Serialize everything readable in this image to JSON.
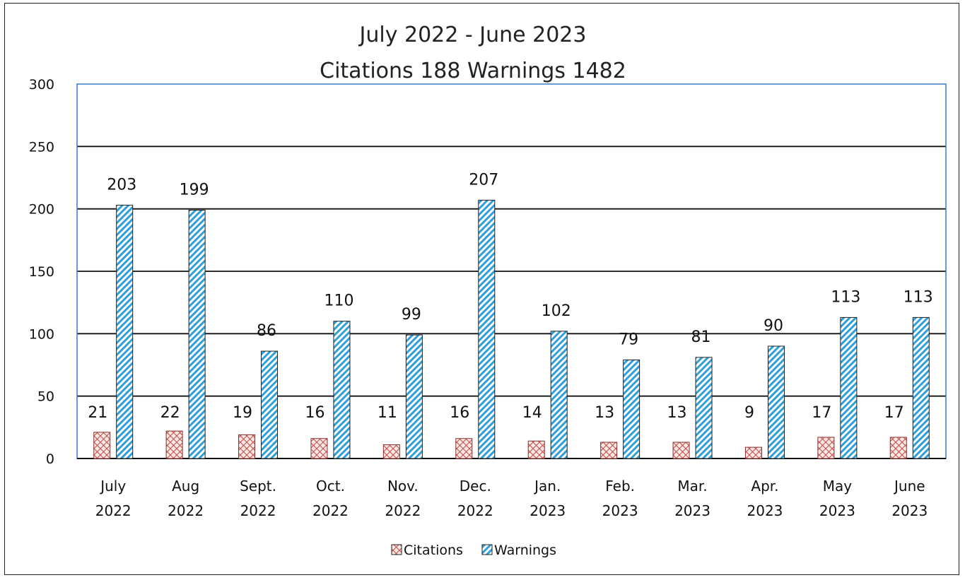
{
  "chart_data": {
    "type": "bar",
    "title_lines": [
      "July 2022 - June 2023",
      "Citations 188 Warnings 1482"
    ],
    "categories": [
      [
        "July",
        "2022"
      ],
      [
        "Aug",
        "2022"
      ],
      [
        "Sept.",
        "2022"
      ],
      [
        "Oct.",
        "2022"
      ],
      [
        "Nov.",
        "2022"
      ],
      [
        "Dec.",
        "2022"
      ],
      [
        "Jan.",
        "2023"
      ],
      [
        "Feb.",
        "2023"
      ],
      [
        "Mar.",
        "2023"
      ],
      [
        "Apr.",
        "2023"
      ],
      [
        "May",
        "2023"
      ],
      [
        "June",
        "2023"
      ]
    ],
    "series": [
      {
        "name": "Citations",
        "values": [
          21,
          22,
          19,
          16,
          11,
          16,
          14,
          13,
          13,
          9,
          17,
          17
        ],
        "color": "#c0504d",
        "pattern": "crosshatch"
      },
      {
        "name": "Warnings",
        "values": [
          203,
          199,
          86,
          110,
          99,
          207,
          102,
          79,
          81,
          90,
          113,
          113
        ],
        "color": "#2e9fd8",
        "pattern": "diagonal-stripes"
      }
    ],
    "ylim": [
      0,
      300
    ],
    "yticks": [
      0,
      50,
      100,
      150,
      200,
      250,
      300
    ],
    "grid": true,
    "legend_position": "bottom",
    "plot_border_color": "#3b7dc4"
  }
}
